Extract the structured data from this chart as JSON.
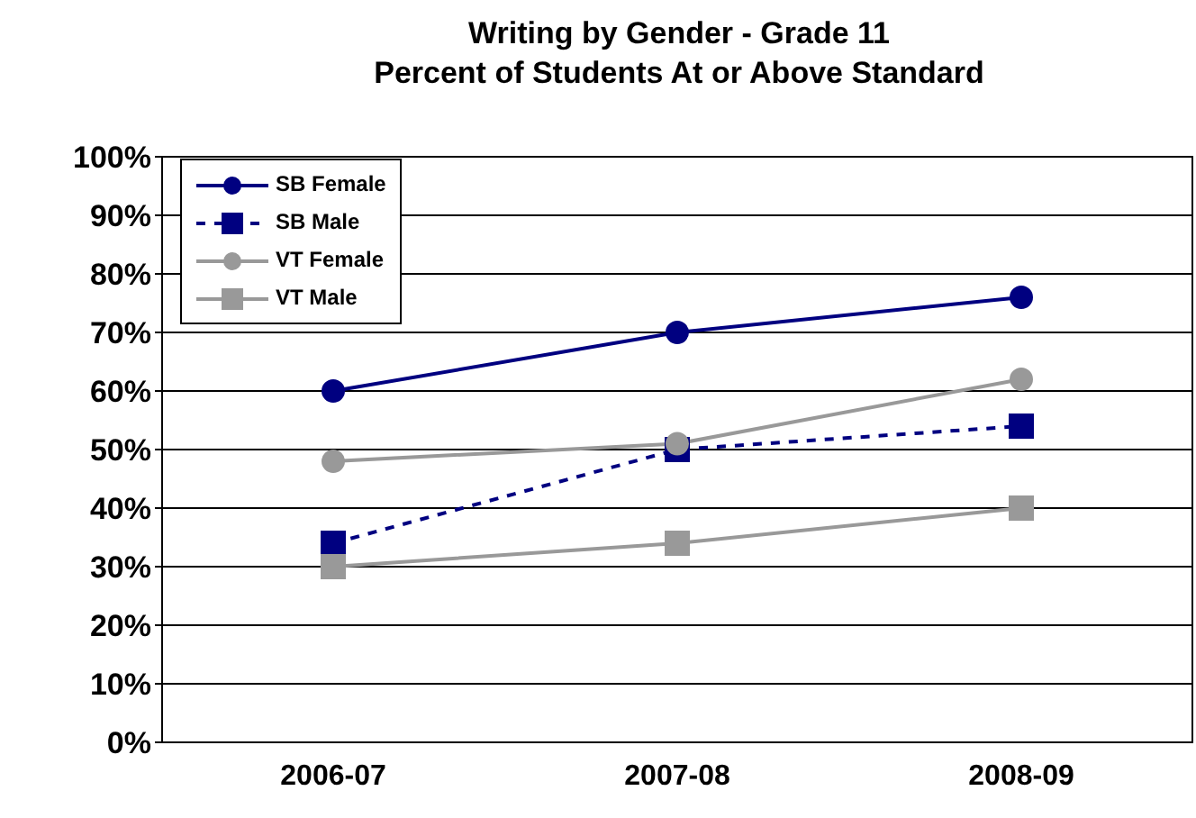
{
  "chart_data": {
    "type": "line",
    "title": "Writing by Gender - Grade 11\nPercent of Students At or Above Standard",
    "categories": [
      "2006-07",
      "2007-08",
      "2008-09"
    ],
    "series": [
      {
        "name": "SB Female",
        "color": "#000080",
        "values": [
          60,
          70,
          76
        ],
        "marker": "circle",
        "line_style": "solid"
      },
      {
        "name": "SB Male",
        "color": "#000080",
        "values": [
          34,
          50,
          54
        ],
        "marker": "square",
        "line_style": "dashed"
      },
      {
        "name": "VT Female",
        "color": "#999999",
        "values": [
          48,
          51,
          62
        ],
        "marker": "circle",
        "line_style": "solid"
      },
      {
        "name": "VT Male",
        "color": "#999999",
        "values": [
          30,
          34,
          40
        ],
        "marker": "square",
        "line_style": "solid"
      }
    ],
    "ylim": [
      0,
      100
    ],
    "yticks": [
      {
        "value": 0,
        "label": "0%"
      },
      {
        "value": 10,
        "label": "10%"
      },
      {
        "value": 20,
        "label": "20%"
      },
      {
        "value": 30,
        "label": "30%"
      },
      {
        "value": 40,
        "label": "40%"
      },
      {
        "value": 50,
        "label": "50%"
      },
      {
        "value": 60,
        "label": "60%"
      },
      {
        "value": 70,
        "label": "70%"
      },
      {
        "value": 80,
        "label": "80%"
      },
      {
        "value": 90,
        "label": "90%"
      },
      {
        "value": 100,
        "label": "100%"
      }
    ],
    "grid": "y",
    "legend": "top left"
  }
}
